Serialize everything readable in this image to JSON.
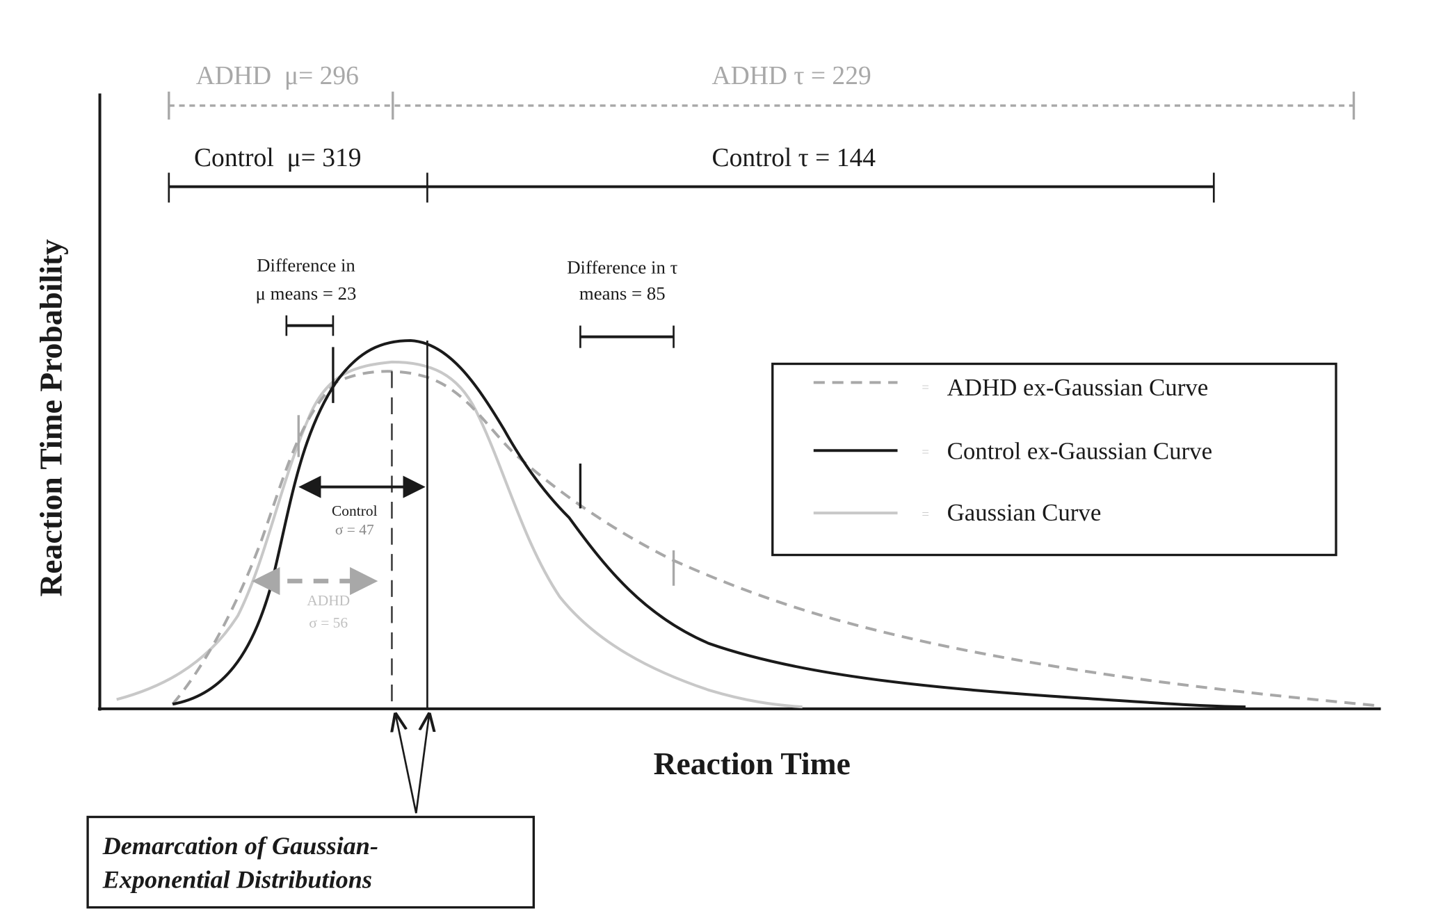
{
  "axes": {
    "y_label": "Reaction Time Probability",
    "x_label": "Reaction Time"
  },
  "top_bars": {
    "adhd_mu": "ADHD  μ= 296",
    "adhd_tau": "ADHD τ = 229",
    "control_mu": "Control  μ= 319",
    "control_tau": "Control τ = 144"
  },
  "annotations": {
    "diff_mu_line1": "Difference in",
    "diff_mu_line2": "μ means = 23",
    "diff_tau_line1": "Difference in τ",
    "diff_tau_line2": "means = 85",
    "control_sigma_line1": "Control",
    "control_sigma_line2": "σ = 47",
    "adhd_sigma_line1": "ADHD",
    "adhd_sigma_line2": "σ = 56"
  },
  "legend": {
    "items": [
      {
        "label": "ADHD ex-Gaussian Curve",
        "eq": "=",
        "style": "dashed",
        "color": "#a8a8a8"
      },
      {
        "label": "Control ex-Gaussian Curve",
        "eq": "=",
        "style": "solid",
        "color": "#1a1a1a"
      },
      {
        "label": "Gaussian Curve",
        "eq": "=",
        "style": "solid",
        "color": "#c8c8c8"
      }
    ]
  },
  "callout": {
    "line1": "Demarcation of Gaussian-",
    "line2": "Exponential Distributions"
  }
}
